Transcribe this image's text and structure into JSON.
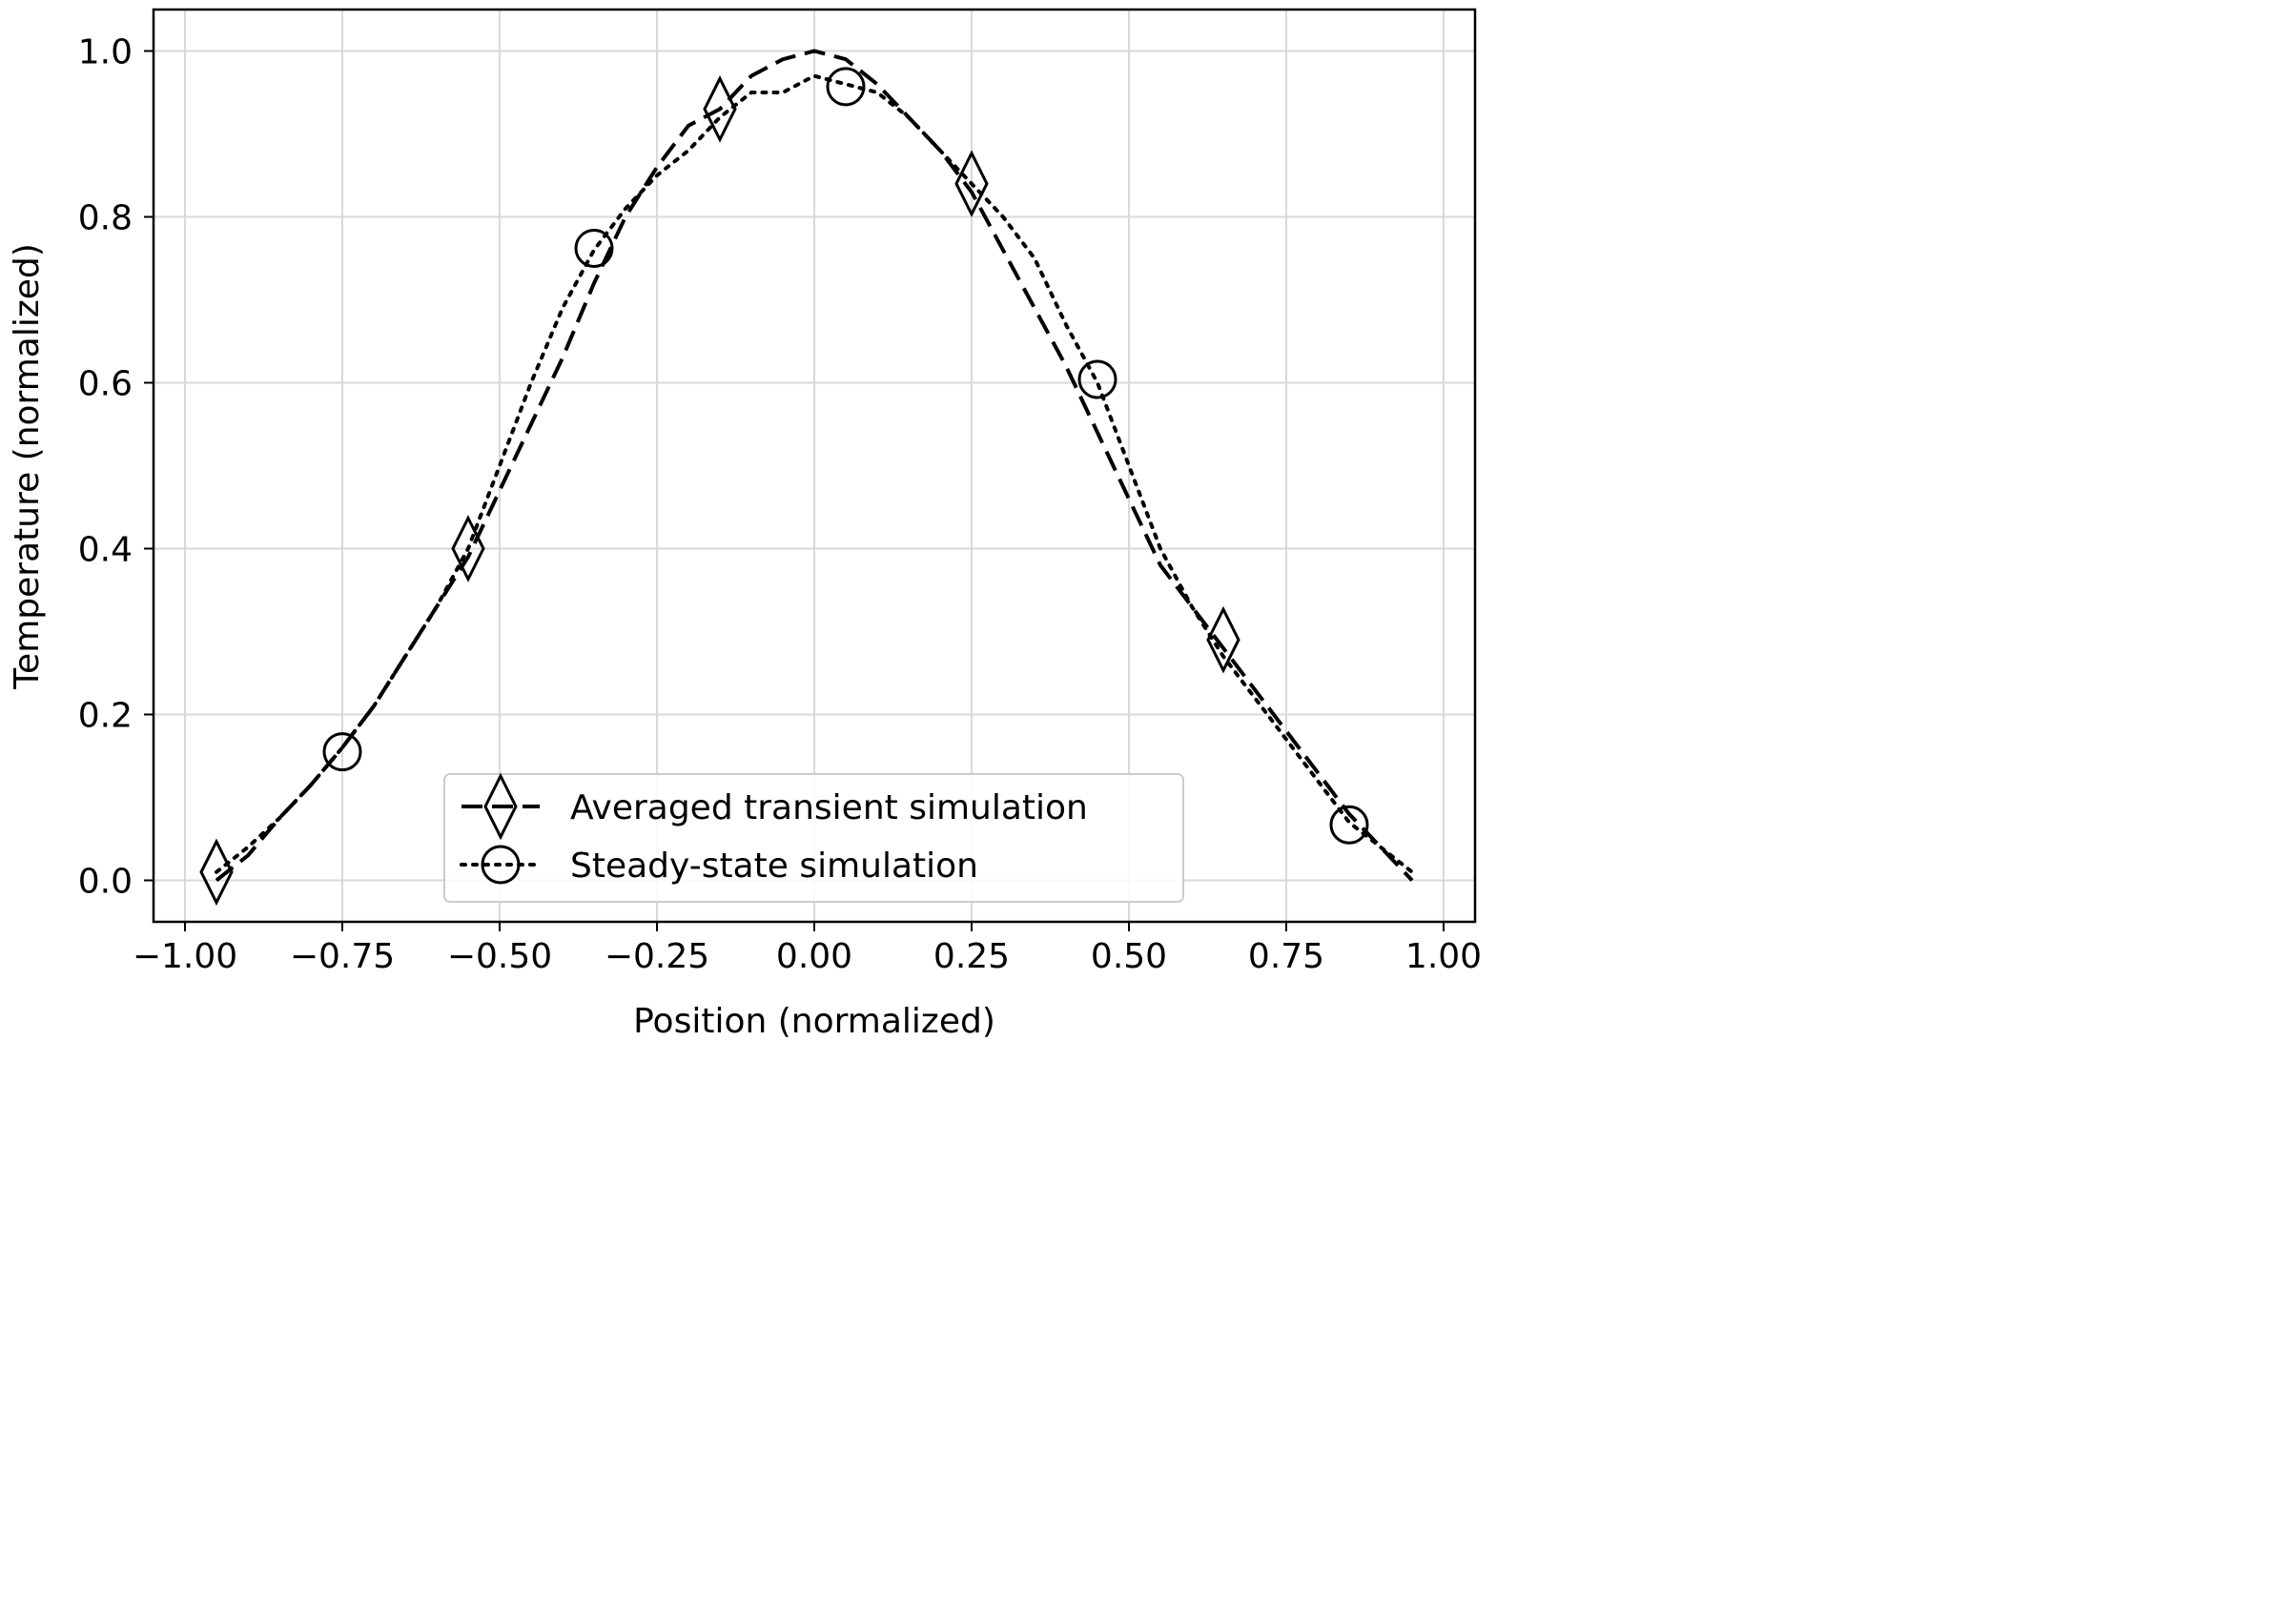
{
  "chart_data": {
    "type": "line",
    "title": "",
    "xlabel": "Position (normalized)",
    "ylabel": "Temperature (normalized)",
    "xlim": [
      -1.05,
      1.05
    ],
    "ylim": [
      -0.05,
      1.05
    ],
    "xticks": [
      -1.0,
      -0.75,
      -0.5,
      -0.25,
      0.0,
      0.25,
      0.5,
      0.75,
      1.0
    ],
    "xtick_labels": [
      "−1.00",
      "−0.75",
      "−0.50",
      "−0.25",
      "0.00",
      "0.25",
      "0.50",
      "0.75",
      "1.00"
    ],
    "yticks": [
      0.0,
      0.2,
      0.4,
      0.6,
      0.8,
      1.0
    ],
    "ytick_labels": [
      "0.0",
      "0.2",
      "0.4",
      "0.6",
      "0.8",
      "1.0"
    ],
    "grid": true,
    "legend_position": "bottom-center",
    "line_color": "#000000",
    "grid_color": "#d9d9d9",
    "series": [
      {
        "name": "Averaged transient simulation",
        "linestyle": "dashed",
        "marker": "diamond",
        "x": [
          -0.95,
          -0.9,
          -0.85,
          -0.8,
          -0.75,
          -0.7,
          -0.65,
          -0.6,
          -0.55,
          -0.5,
          -0.45,
          -0.4,
          -0.35,
          -0.3,
          -0.25,
          -0.2,
          -0.15,
          -0.1,
          -0.05,
          0.0,
          0.05,
          0.1,
          0.15,
          0.2,
          0.25,
          0.3,
          0.35,
          0.4,
          0.45,
          0.5,
          0.55,
          0.6,
          0.65,
          0.7,
          0.75,
          0.8,
          0.85,
          0.9,
          0.95
        ],
        "y": [
          0.0,
          0.03,
          0.075,
          0.115,
          0.16,
          0.21,
          0.27,
          0.33,
          0.39,
          0.47,
          0.55,
          0.63,
          0.72,
          0.8,
          0.86,
          0.91,
          0.93,
          0.97,
          0.99,
          1.0,
          0.99,
          0.96,
          0.92,
          0.88,
          0.83,
          0.76,
          0.69,
          0.62,
          0.54,
          0.46,
          0.38,
          0.33,
          0.28,
          0.23,
          0.18,
          0.13,
          0.08,
          0.04,
          0.0
        ],
        "marker_x": [
          -0.95,
          -0.55,
          -0.15,
          0.25,
          0.65
        ],
        "marker_y": [
          0.01,
          0.4,
          0.93,
          0.84,
          0.29
        ]
      },
      {
        "name": "Steady-state simulation",
        "linestyle": "dotted",
        "marker": "circle",
        "x": [
          -0.95,
          -0.9,
          -0.85,
          -0.8,
          -0.75,
          -0.7,
          -0.65,
          -0.6,
          -0.55,
          -0.5,
          -0.45,
          -0.4,
          -0.35,
          -0.3,
          -0.25,
          -0.2,
          -0.15,
          -0.1,
          -0.05,
          0.0,
          0.05,
          0.1,
          0.15,
          0.2,
          0.25,
          0.3,
          0.35,
          0.4,
          0.45,
          0.5,
          0.55,
          0.6,
          0.65,
          0.7,
          0.75,
          0.8,
          0.85,
          0.9,
          0.95
        ],
        "y": [
          0.01,
          0.04,
          0.075,
          0.115,
          0.16,
          0.21,
          0.27,
          0.33,
          0.4,
          0.5,
          0.6,
          0.69,
          0.76,
          0.81,
          0.85,
          0.88,
          0.92,
          0.95,
          0.95,
          0.97,
          0.96,
          0.95,
          0.92,
          0.88,
          0.84,
          0.8,
          0.75,
          0.67,
          0.6,
          0.5,
          0.4,
          0.33,
          0.27,
          0.22,
          0.17,
          0.12,
          0.07,
          0.04,
          0.01
        ],
        "marker_x": [
          -0.75,
          -0.35,
          0.05,
          0.45,
          0.85
        ],
        "marker_y": [
          0.155,
          0.762,
          0.957,
          0.604,
          0.067
        ]
      }
    ]
  }
}
